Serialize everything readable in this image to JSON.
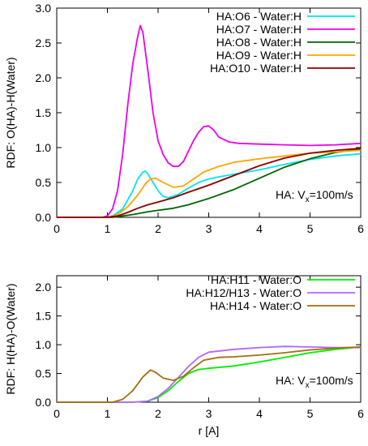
{
  "chart_data": [
    {
      "type": "line",
      "ylabel": "RDF: O(HA)-H(Water)",
      "xlim": [
        0,
        6
      ],
      "ylim": [
        0,
        3.0
      ],
      "x_ticks": [
        "0",
        "1",
        "2",
        "3",
        "4",
        "5",
        "6"
      ],
      "y_ticks": [
        "0.0",
        "0.5",
        "1.0",
        "1.5",
        "2.0",
        "2.5",
        "3.0"
      ],
      "legend_position": "top-right",
      "annotation": {
        "main": "HA: V",
        "sub": "x",
        "tail": "=100m/s"
      },
      "series": [
        {
          "name": "HA:O6 - Water:H",
          "color": "#00e5ee",
          "points": [
            [
              0,
              0
            ],
            [
              1.0,
              0
            ],
            [
              1.1,
              0.02
            ],
            [
              1.3,
              0.12
            ],
            [
              1.5,
              0.38
            ],
            [
              1.6,
              0.55
            ],
            [
              1.7,
              0.65
            ],
            [
              1.75,
              0.66
            ],
            [
              1.8,
              0.62
            ],
            [
              1.9,
              0.5
            ],
            [
              2.0,
              0.38
            ],
            [
              2.1,
              0.3
            ],
            [
              2.2,
              0.28
            ],
            [
              2.4,
              0.33
            ],
            [
              2.6,
              0.42
            ],
            [
              2.8,
              0.5
            ],
            [
              3.0,
              0.55
            ],
            [
              3.2,
              0.58
            ],
            [
              3.5,
              0.62
            ],
            [
              4.0,
              0.68
            ],
            [
              4.5,
              0.76
            ],
            [
              5.0,
              0.83
            ],
            [
              5.5,
              0.88
            ],
            [
              6.0,
              0.91
            ]
          ]
        },
        {
          "name": "HA:O7 - Water:H",
          "color": "#ee00ee",
          "points": [
            [
              0,
              0
            ],
            [
              0.9,
              0
            ],
            [
              1.0,
              0.02
            ],
            [
              1.1,
              0.12
            ],
            [
              1.2,
              0.38
            ],
            [
              1.3,
              0.9
            ],
            [
              1.4,
              1.6
            ],
            [
              1.5,
              2.2
            ],
            [
              1.6,
              2.6
            ],
            [
              1.65,
              2.75
            ],
            [
              1.7,
              2.65
            ],
            [
              1.8,
              2.1
            ],
            [
              1.9,
              1.5
            ],
            [
              2.0,
              1.1
            ],
            [
              2.1,
              0.9
            ],
            [
              2.2,
              0.78
            ],
            [
              2.3,
              0.73
            ],
            [
              2.4,
              0.73
            ],
            [
              2.5,
              0.8
            ],
            [
              2.6,
              0.95
            ],
            [
              2.7,
              1.1
            ],
            [
              2.8,
              1.22
            ],
            [
              2.9,
              1.3
            ],
            [
              3.0,
              1.31
            ],
            [
              3.1,
              1.25
            ],
            [
              3.2,
              1.15
            ],
            [
              3.4,
              1.08
            ],
            [
              3.6,
              1.06
            ],
            [
              4.0,
              1.05
            ],
            [
              4.5,
              1.04
            ],
            [
              5.0,
              1.03
            ],
            [
              5.5,
              1.04
            ],
            [
              6.0,
              1.06
            ]
          ]
        },
        {
          "name": "HA:O8 - Water:H",
          "color": "#006400",
          "points": [
            [
              0,
              0
            ],
            [
              1.1,
              0
            ],
            [
              1.3,
              0.02
            ],
            [
              1.5,
              0.04
            ],
            [
              1.8,
              0.08
            ],
            [
              2.0,
              0.1
            ],
            [
              2.3,
              0.13
            ],
            [
              2.6,
              0.18
            ],
            [
              3.0,
              0.27
            ],
            [
              3.5,
              0.4
            ],
            [
              4.0,
              0.56
            ],
            [
              4.5,
              0.72
            ],
            [
              5.0,
              0.84
            ],
            [
              5.5,
              0.93
            ],
            [
              6.0,
              0.98
            ]
          ]
        },
        {
          "name": "HA:O9 - Water:H",
          "color": "#ffa500",
          "points": [
            [
              0,
              0
            ],
            [
              1.0,
              0
            ],
            [
              1.2,
              0.04
            ],
            [
              1.4,
              0.15
            ],
            [
              1.6,
              0.32
            ],
            [
              1.75,
              0.48
            ],
            [
              1.85,
              0.55
            ],
            [
              1.95,
              0.56
            ],
            [
              2.1,
              0.5
            ],
            [
              2.3,
              0.43
            ],
            [
              2.5,
              0.45
            ],
            [
              2.7,
              0.55
            ],
            [
              2.9,
              0.65
            ],
            [
              3.2,
              0.73
            ],
            [
              3.5,
              0.79
            ],
            [
              4.0,
              0.84
            ],
            [
              4.5,
              0.88
            ],
            [
              5.0,
              0.92
            ],
            [
              5.5,
              0.94
            ],
            [
              6.0,
              0.96
            ]
          ]
        },
        {
          "name": "HA:O10 - Water:H",
          "color": "#8b0000",
          "points": [
            [
              0,
              0
            ],
            [
              1.0,
              0
            ],
            [
              1.2,
              0.02
            ],
            [
              1.4,
              0.07
            ],
            [
              1.6,
              0.13
            ],
            [
              1.8,
              0.18
            ],
            [
              2.0,
              0.22
            ],
            [
              2.3,
              0.28
            ],
            [
              2.6,
              0.36
            ],
            [
              3.0,
              0.46
            ],
            [
              3.5,
              0.6
            ],
            [
              4.0,
              0.74
            ],
            [
              4.5,
              0.85
            ],
            [
              5.0,
              0.92
            ],
            [
              5.5,
              0.96
            ],
            [
              6.0,
              0.99
            ]
          ]
        }
      ]
    },
    {
      "type": "line",
      "xlabel": "r  [A]",
      "ylabel": "RDF: H(HA)-O(Water)",
      "xlim": [
        0,
        6
      ],
      "ylim": [
        0,
        2.2
      ],
      "x_ticks": [
        "0",
        "1",
        "2",
        "3",
        "4",
        "5",
        "6"
      ],
      "y_ticks": [
        "0.0",
        "0.5",
        "1.0",
        "1.5",
        "2.0"
      ],
      "legend_position": "top-right",
      "annotation": {
        "main": "HA: V",
        "sub": "x",
        "tail": "=100m/s"
      },
      "series": [
        {
          "name": "HA:H11 - Water:O",
          "color": "#00ee00",
          "points": [
            [
              0,
              0
            ],
            [
              1.5,
              0
            ],
            [
              1.8,
              0.02
            ],
            [
              2.0,
              0.08
            ],
            [
              2.2,
              0.2
            ],
            [
              2.4,
              0.36
            ],
            [
              2.6,
              0.5
            ],
            [
              2.8,
              0.57
            ],
            [
              3.0,
              0.59
            ],
            [
              3.5,
              0.63
            ],
            [
              4.0,
              0.7
            ],
            [
              4.5,
              0.78
            ],
            [
              5.0,
              0.86
            ],
            [
              5.5,
              0.92
            ],
            [
              6.0,
              0.96
            ]
          ]
        },
        {
          "name": "HA:H12/H13 - Water:O",
          "color": "#b266ff",
          "points": [
            [
              0,
              0
            ],
            [
              1.5,
              0
            ],
            [
              1.8,
              0.02
            ],
            [
              2.0,
              0.1
            ],
            [
              2.2,
              0.24
            ],
            [
              2.4,
              0.43
            ],
            [
              2.6,
              0.62
            ],
            [
              2.8,
              0.78
            ],
            [
              3.0,
              0.87
            ],
            [
              3.5,
              0.92
            ],
            [
              4.0,
              0.95
            ],
            [
              4.5,
              0.97
            ],
            [
              5.0,
              0.96
            ],
            [
              5.5,
              0.95
            ],
            [
              6.0,
              0.95
            ]
          ]
        },
        {
          "name": "HA:H14 - Water:O",
          "color": "#a0700a",
          "points": [
            [
              0,
              0
            ],
            [
              1.1,
              0
            ],
            [
              1.3,
              0.05
            ],
            [
              1.5,
              0.2
            ],
            [
              1.7,
              0.44
            ],
            [
              1.85,
              0.56
            ],
            [
              1.95,
              0.52
            ],
            [
              2.1,
              0.42
            ],
            [
              2.3,
              0.38
            ],
            [
              2.5,
              0.45
            ],
            [
              2.7,
              0.6
            ],
            [
              2.9,
              0.73
            ],
            [
              3.2,
              0.78
            ],
            [
              3.5,
              0.79
            ],
            [
              4.0,
              0.82
            ],
            [
              4.5,
              0.86
            ],
            [
              5.0,
              0.91
            ],
            [
              5.5,
              0.94
            ],
            [
              6.0,
              0.96
            ]
          ]
        }
      ]
    }
  ]
}
